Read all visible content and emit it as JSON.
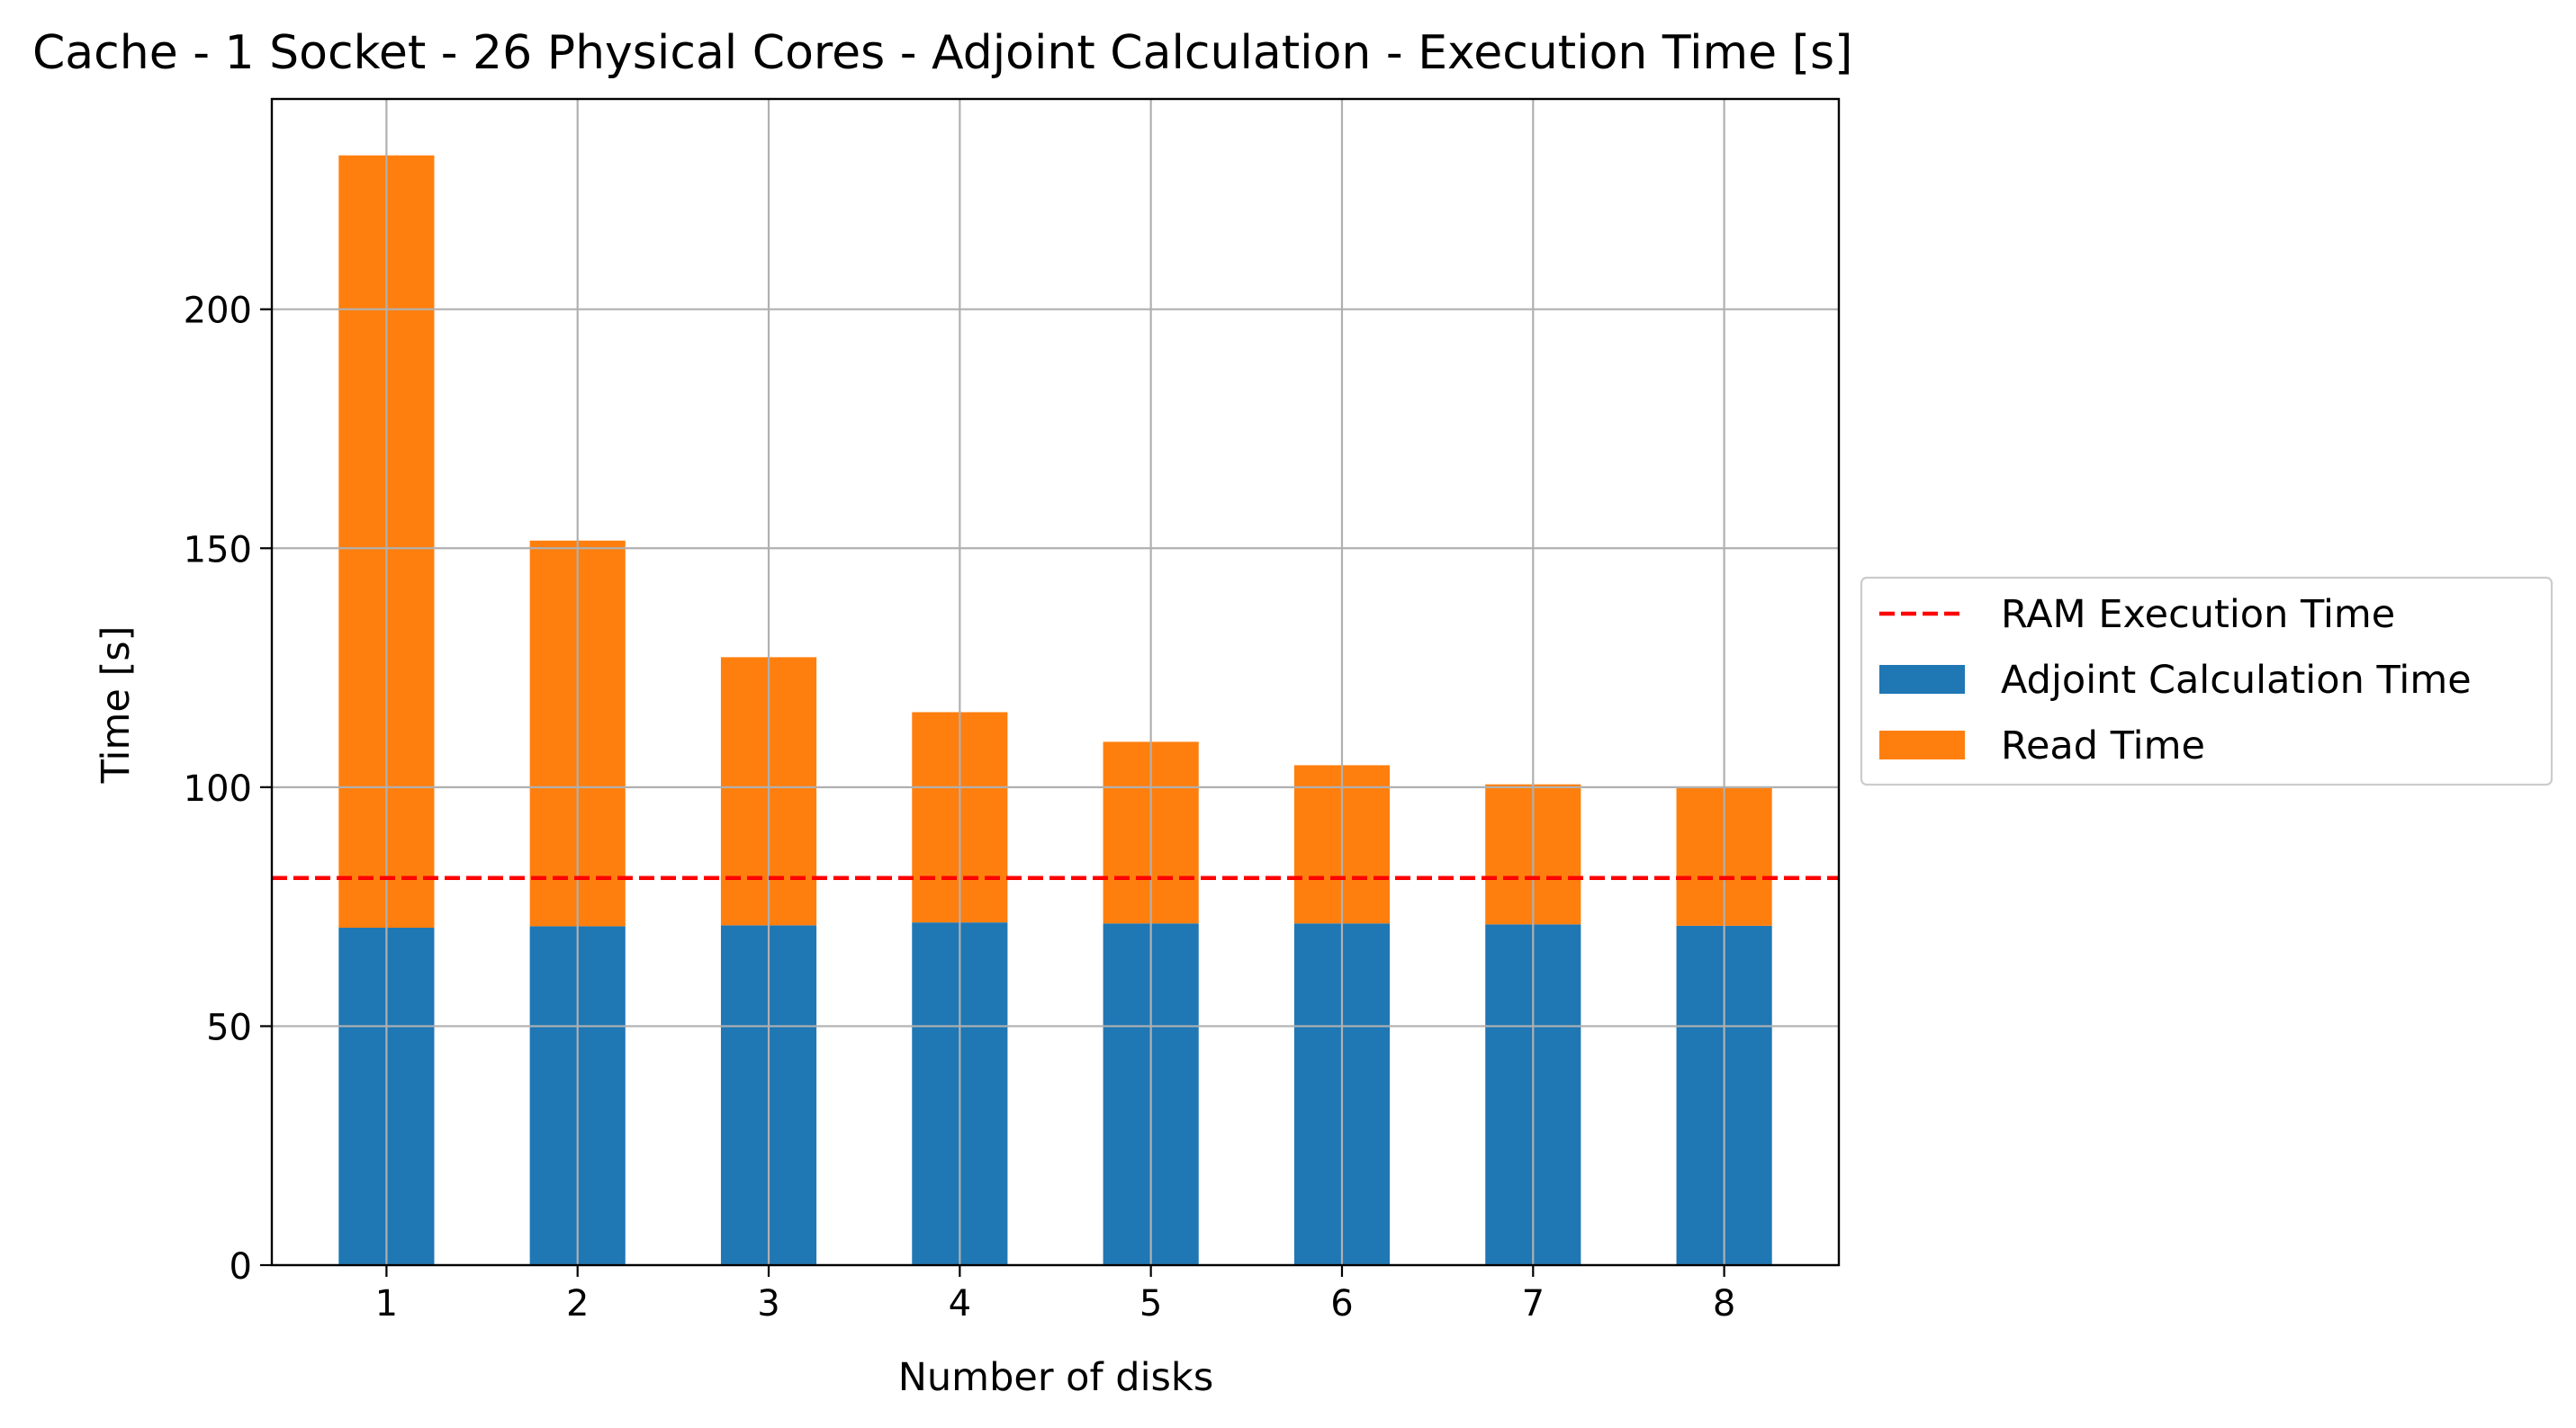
{
  "chart_data": {
    "type": "bar",
    "stacked": true,
    "title": "Cache - 1 Socket - 26 Physical Cores - Adjoint Calculation - Execution Time [s]",
    "xlabel": "Number of disks",
    "ylabel": "Time [s]",
    "categories": [
      "1",
      "2",
      "3",
      "4",
      "5",
      "6",
      "7",
      "8"
    ],
    "ylim": [
      0,
      244
    ],
    "yticks": [
      0,
      50,
      100,
      150,
      200
    ],
    "grid": true,
    "legend_position": "outside-right",
    "series": [
      {
        "name": "Adjoint Calculation Time",
        "color": "#1f77b4",
        "values": [
          70.6,
          70.9,
          71.1,
          71.7,
          71.5,
          71.5,
          71.3,
          71.0
        ]
      },
      {
        "name": "Read Time",
        "color": "#ff7f0e",
        "values": [
          161.6,
          80.7,
          56.1,
          44.0,
          38.0,
          33.1,
          29.3,
          28.9
        ]
      }
    ],
    "reference_lines": [
      {
        "name": "RAM Execution Time",
        "value": 81.0,
        "color": "#ff0000",
        "style": "dashed"
      }
    ],
    "legend": [
      "RAM Execution Time",
      "Adjoint Calculation Time",
      "Read Time"
    ]
  }
}
